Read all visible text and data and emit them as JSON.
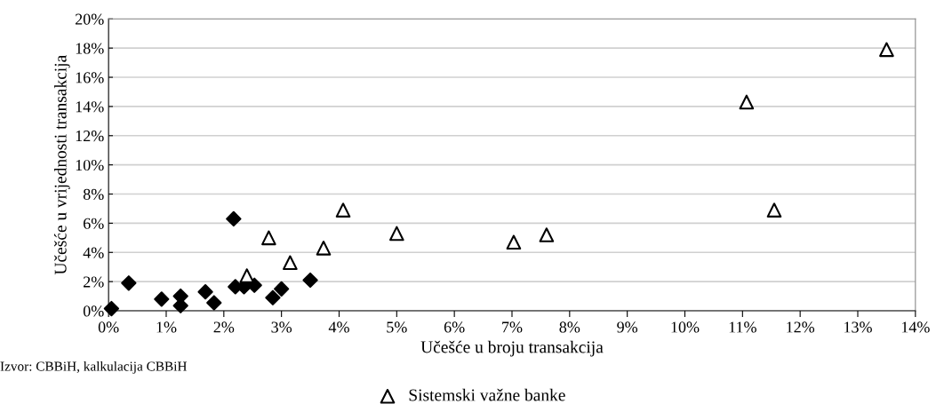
{
  "chart_data": {
    "type": "scatter",
    "xlabel": "Učešće u broju transakcija",
    "ylabel": "Učešće u vrijednosti transakcija",
    "annotations": [
      "Izvor: CBBiH, kalkulacija CBBiH"
    ],
    "series": [
      {
        "color": "#000000",
        "marker": "diamond",
        "x": [
          0.05,
          0.35,
          0.92,
          1.25,
          1.25,
          1.68,
          1.83,
          2.17,
          2.2,
          2.35,
          2.53,
          2.85,
          3.0,
          3.5
        ],
        "values": [
          0.15,
          1.9,
          0.8,
          1.0,
          0.35,
          1.3,
          0.55,
          6.3,
          1.65,
          1.65,
          1.75,
          0.9,
          1.5,
          2.1
        ]
      },
      {
        "name": "Sistemski važne banke",
        "color": "#000000",
        "marker": "triangle",
        "x": [
          2.4,
          2.78,
          3.15,
          3.73,
          4.07,
          5.0,
          7.03,
          7.6,
          11.07,
          11.55,
          13.5
        ],
        "values": [
          2.4,
          5.0,
          3.3,
          4.3,
          6.9,
          5.3,
          4.7,
          5.2,
          14.3,
          6.9,
          17.9
        ]
      }
    ],
    "xlim": [
      0,
      14
    ],
    "ylim": [
      0,
      20
    ],
    "xticks": [
      {
        "value": 0,
        "label": "0%"
      },
      {
        "value": 1,
        "label": "1%"
      },
      {
        "value": 2,
        "label": "2%"
      },
      {
        "value": 3,
        "label": "3%"
      },
      {
        "value": 4,
        "label": "4%"
      },
      {
        "value": 5,
        "label": "5%"
      },
      {
        "value": 6,
        "label": "6%"
      },
      {
        "value": 7,
        "label": "7%"
      },
      {
        "value": 8,
        "label": "8%"
      },
      {
        "value": 9,
        "label": "9%"
      },
      {
        "value": 10,
        "label": "10%"
      },
      {
        "value": 11,
        "label": "11%"
      },
      {
        "value": 12,
        "label": "12%"
      },
      {
        "value": 13,
        "label": "13%"
      },
      {
        "value": 14,
        "label": "14%"
      }
    ],
    "yticks": [
      {
        "value": 0,
        "label": "0%"
      },
      {
        "value": 2,
        "label": "2%"
      },
      {
        "value": 4,
        "label": "4%"
      },
      {
        "value": 6,
        "label": "6%"
      },
      {
        "value": 8,
        "label": "8%"
      },
      {
        "value": 10,
        "label": "10%"
      },
      {
        "value": 12,
        "label": "12%"
      },
      {
        "value": 14,
        "label": "14%"
      },
      {
        "value": 16,
        "label": "16%"
      },
      {
        "value": 18,
        "label": "18%"
      },
      {
        "value": 20,
        "label": "20%"
      }
    ],
    "grid": "y",
    "legend": "bottom"
  }
}
